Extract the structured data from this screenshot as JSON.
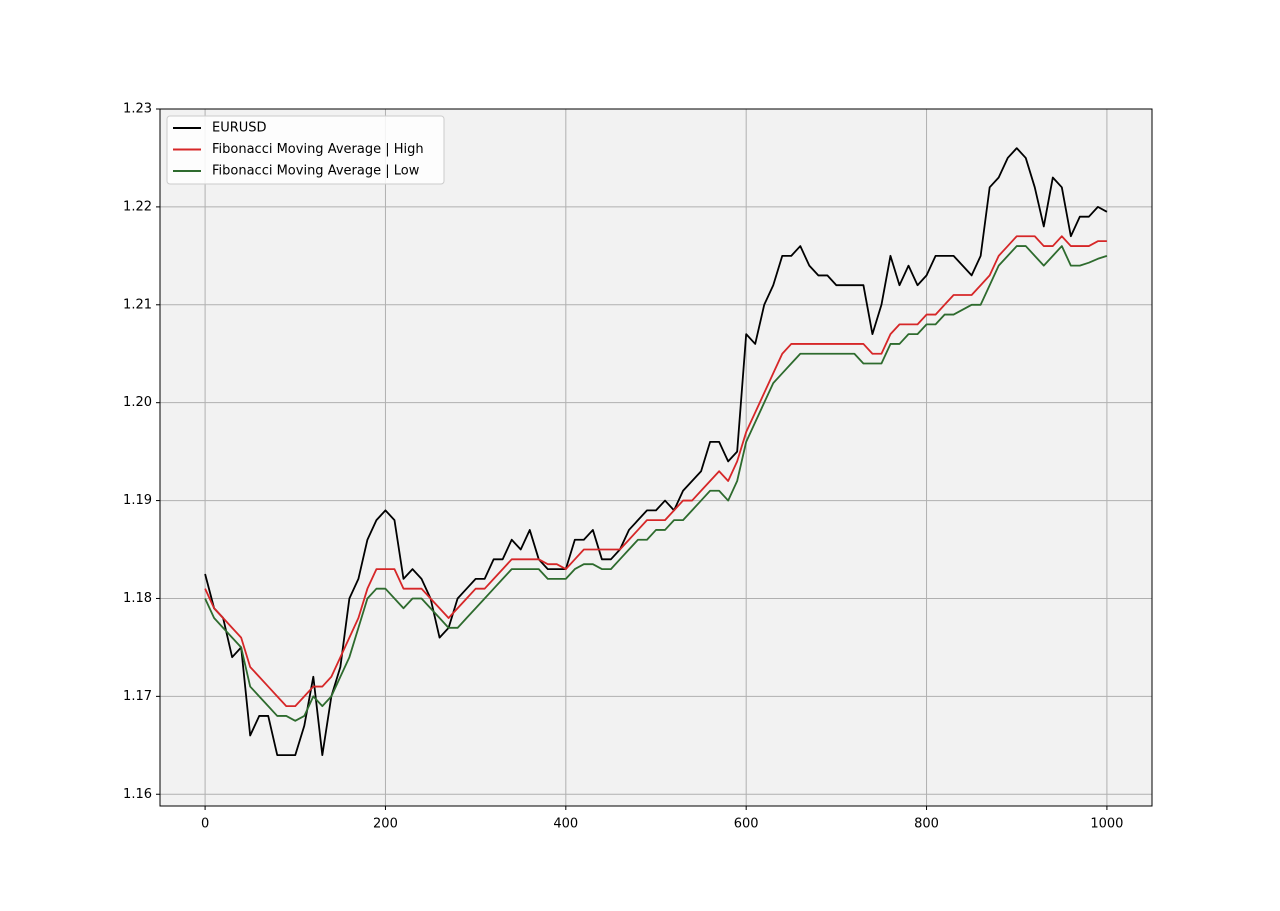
{
  "chart_data": {
    "type": "line",
    "x": [
      0,
      10,
      20,
      30,
      40,
      50,
      60,
      70,
      80,
      90,
      100,
      110,
      120,
      130,
      140,
      150,
      160,
      170,
      180,
      190,
      200,
      210,
      220,
      230,
      240,
      250,
      260,
      270,
      280,
      290,
      300,
      310,
      320,
      330,
      340,
      350,
      360,
      370,
      380,
      390,
      400,
      410,
      420,
      430,
      440,
      450,
      460,
      470,
      480,
      490,
      500,
      510,
      520,
      530,
      540,
      550,
      560,
      570,
      580,
      590,
      600,
      610,
      620,
      630,
      640,
      650,
      660,
      670,
      680,
      690,
      700,
      710,
      720,
      730,
      740,
      750,
      760,
      770,
      780,
      790,
      800,
      810,
      820,
      830,
      840,
      850,
      860,
      870,
      880,
      890,
      900,
      910,
      920,
      930,
      940,
      950,
      960,
      970,
      980,
      990,
      1000
    ],
    "series": [
      {
        "name": "EURUSD",
        "color": "#000000",
        "values": [
          1.1825,
          1.179,
          1.178,
          1.174,
          1.175,
          1.166,
          1.168,
          1.168,
          1.164,
          1.164,
          1.164,
          1.167,
          1.172,
          1.164,
          1.17,
          1.173,
          1.18,
          1.182,
          1.186,
          1.188,
          1.189,
          1.188,
          1.182,
          1.183,
          1.182,
          1.18,
          1.176,
          1.177,
          1.18,
          1.181,
          1.182,
          1.182,
          1.184,
          1.184,
          1.186,
          1.185,
          1.187,
          1.184,
          1.183,
          1.183,
          1.183,
          1.186,
          1.186,
          1.187,
          1.184,
          1.184,
          1.185,
          1.187,
          1.188,
          1.189,
          1.189,
          1.19,
          1.189,
          1.191,
          1.192,
          1.193,
          1.196,
          1.196,
          1.194,
          1.195,
          1.207,
          1.206,
          1.21,
          1.212,
          1.215,
          1.215,
          1.216,
          1.214,
          1.213,
          1.213,
          1.212,
          1.212,
          1.212,
          1.212,
          1.207,
          1.21,
          1.215,
          1.212,
          1.214,
          1.212,
          1.213,
          1.215,
          1.215,
          1.215,
          1.214,
          1.213,
          1.215,
          1.222,
          1.223,
          1.225,
          1.226,
          1.225,
          1.222,
          1.218,
          1.223,
          1.222,
          1.217,
          1.219,
          1.219,
          1.22,
          1.2195
        ]
      },
      {
        "name": "Fibonacci Moving Average | High",
        "color": "#d62728",
        "values": [
          1.181,
          1.179,
          1.178,
          1.177,
          1.176,
          1.173,
          1.172,
          1.171,
          1.17,
          1.169,
          1.169,
          1.17,
          1.171,
          1.171,
          1.172,
          1.174,
          1.176,
          1.178,
          1.181,
          1.183,
          1.183,
          1.183,
          1.181,
          1.181,
          1.181,
          1.18,
          1.179,
          1.178,
          1.179,
          1.18,
          1.181,
          1.181,
          1.182,
          1.183,
          1.184,
          1.184,
          1.184,
          1.184,
          1.1835,
          1.1835,
          1.183,
          1.184,
          1.185,
          1.185,
          1.185,
          1.185,
          1.185,
          1.186,
          1.187,
          1.188,
          1.188,
          1.188,
          1.189,
          1.19,
          1.19,
          1.191,
          1.192,
          1.193,
          1.192,
          1.194,
          1.197,
          1.199,
          1.201,
          1.203,
          1.205,
          1.206,
          1.206,
          1.206,
          1.206,
          1.206,
          1.206,
          1.206,
          1.206,
          1.206,
          1.205,
          1.205,
          1.207,
          1.208,
          1.208,
          1.208,
          1.209,
          1.209,
          1.21,
          1.211,
          1.211,
          1.211,
          1.212,
          1.213,
          1.215,
          1.216,
          1.217,
          1.217,
          1.217,
          1.216,
          1.216,
          1.217,
          1.216,
          1.216,
          1.216,
          1.2165,
          1.2165
        ]
      },
      {
        "name": "Fibonacci Moving Average | Low",
        "color": "#2e6b2e",
        "values": [
          1.18,
          1.178,
          1.177,
          1.176,
          1.175,
          1.171,
          1.17,
          1.169,
          1.168,
          1.168,
          1.1675,
          1.168,
          1.17,
          1.169,
          1.17,
          1.172,
          1.174,
          1.177,
          1.18,
          1.181,
          1.181,
          1.18,
          1.179,
          1.18,
          1.18,
          1.179,
          1.178,
          1.177,
          1.177,
          1.178,
          1.179,
          1.18,
          1.181,
          1.182,
          1.183,
          1.183,
          1.183,
          1.183,
          1.182,
          1.182,
          1.182,
          1.183,
          1.1835,
          1.1835,
          1.183,
          1.183,
          1.184,
          1.185,
          1.186,
          1.186,
          1.187,
          1.187,
          1.188,
          1.188,
          1.189,
          1.19,
          1.191,
          1.191,
          1.19,
          1.192,
          1.196,
          1.198,
          1.2,
          1.202,
          1.203,
          1.204,
          1.205,
          1.205,
          1.205,
          1.205,
          1.205,
          1.205,
          1.205,
          1.204,
          1.204,
          1.204,
          1.206,
          1.206,
          1.207,
          1.207,
          1.208,
          1.208,
          1.209,
          1.209,
          1.2095,
          1.21,
          1.21,
          1.212,
          1.214,
          1.215,
          1.216,
          1.216,
          1.215,
          1.214,
          1.215,
          1.216,
          1.214,
          1.214,
          1.2143,
          1.2147,
          1.215
        ]
      }
    ],
    "xlim": [
      -50,
      1050
    ],
    "ylim": [
      1.1588,
      1.23
    ],
    "xticks": [
      0,
      200,
      400,
      600,
      800,
      1000
    ],
    "yticks": [
      1.16,
      1.17,
      1.18,
      1.19,
      {
        "value": 1.2,
        "label": "1.20"
      },
      1.21,
      1.22,
      1.23
    ],
    "grid": true,
    "legend": "upper-left"
  }
}
